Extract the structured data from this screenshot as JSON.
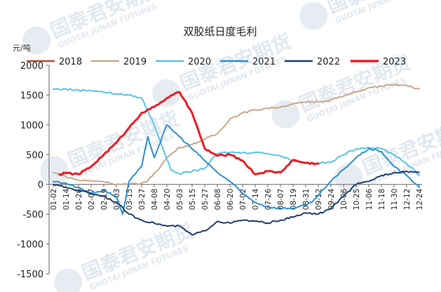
{
  "chart_data": {
    "type": "line",
    "title": "双胶纸日度毛利",
    "unit_label": "元/吨",
    "ylim": [
      -1500,
      2000
    ],
    "yticks": [
      2000,
      1500,
      1000,
      500,
      0,
      -500,
      -1000,
      -1500
    ],
    "xticks": [
      "01-02",
      "01-14",
      "01-26",
      "02-07",
      "02-19",
      "03-03",
      "03-15",
      "03-27",
      "04-08",
      "04-20",
      "05-03",
      "05-15",
      "05-27",
      "06-08",
      "06-20",
      "07-02",
      "07-14",
      "07-26",
      "08-07",
      "08-19",
      "08-31",
      "09-12",
      "09-24",
      "10-06",
      "10-25",
      "11-06",
      "11-18",
      "11-30",
      "12-12",
      "12-24"
    ],
    "legend_position": "top",
    "grid": false,
    "series": [
      {
        "name": "2018",
        "color": "#b8463a",
        "width": 2,
        "x": [],
        "values": []
      },
      {
        "name": "2019",
        "color": "#c8a98b",
        "width": 2,
        "x": [
          0,
          1,
          2,
          3,
          4,
          5,
          6,
          7,
          7.5,
          8,
          8.5,
          9,
          10,
          11,
          12,
          13,
          14,
          15,
          16,
          17,
          18,
          19,
          20,
          21,
          22,
          23,
          24,
          25,
          26,
          27,
          28,
          29
        ],
        "values": [
          200,
          130,
          70,
          60,
          50,
          0,
          0,
          20,
          60,
          190,
          300,
          450,
          620,
          670,
          760,
          850,
          1100,
          1200,
          1250,
          1280,
          1300,
          1350,
          1380,
          1390,
          1420,
          1480,
          1550,
          1620,
          1650,
          1670,
          1660,
          1600
        ]
      },
      {
        "name": "2020",
        "color": "#5bc3ea",
        "width": 2,
        "x": [
          0,
          1,
          2,
          3,
          4,
          5,
          6,
          7,
          8,
          8.7,
          9.3,
          10,
          11,
          12,
          13,
          14,
          15,
          16,
          17,
          18,
          19,
          20,
          21,
          22,
          23,
          24,
          25,
          26,
          27,
          28,
          29
        ],
        "values": [
          1600,
          1600,
          1580,
          1580,
          1550,
          1520,
          1500,
          1450,
          1000,
          600,
          250,
          180,
          220,
          270,
          520,
          540,
          530,
          540,
          520,
          480,
          400,
          360,
          360,
          370,
          500,
          600,
          620,
          600,
          500,
          350,
          150
        ]
      },
      {
        "name": "2021",
        "color": "#2e8fd0",
        "width": 2,
        "x": [
          0,
          1,
          2,
          3,
          4,
          5,
          5.5,
          6,
          7,
          7.5,
          8,
          9,
          10,
          11,
          12,
          13,
          14,
          15,
          16,
          17,
          18,
          19,
          20,
          20.5,
          21,
          22,
          23,
          24,
          25,
          26,
          27,
          28,
          29
        ],
        "values": [
          50,
          20,
          -50,
          -150,
          -100,
          -200,
          -500,
          50,
          300,
          800,
          450,
          1000,
          800,
          600,
          400,
          200,
          50,
          -150,
          -300,
          -380,
          -400,
          -400,
          -350,
          -300,
          -180,
          50,
          250,
          450,
          600,
          550,
          300,
          150,
          -50
        ]
      },
      {
        "name": "2022",
        "color": "#1f3f6e",
        "width": 2,
        "x": [
          0,
          1,
          2,
          3,
          4,
          5,
          6,
          7,
          8,
          9,
          10,
          11,
          12,
          13,
          14,
          15,
          16,
          17,
          18,
          19,
          20,
          21,
          22,
          23,
          24,
          25,
          26,
          27,
          28,
          29
        ],
        "values": [
          0,
          -50,
          -100,
          -150,
          -200,
          -300,
          -500,
          -600,
          -650,
          -700,
          -700,
          -850,
          -780,
          -620,
          -650,
          -600,
          -620,
          -650,
          -600,
          -550,
          -480,
          -500,
          -400,
          -200,
          0,
          50,
          150,
          200,
          220,
          200
        ]
      },
      {
        "name": "2023",
        "color": "#ed1c24",
        "width": 3,
        "x": [
          0.5,
          1,
          2,
          3,
          4,
          5,
          6,
          7,
          8,
          9,
          10,
          11,
          12,
          13,
          14,
          15,
          16,
          17,
          18,
          19,
          20,
          21
        ],
        "values": [
          170,
          190,
          170,
          300,
          500,
          700,
          950,
          1200,
          1300,
          1450,
          1550,
          1200,
          600,
          480,
          500,
          400,
          170,
          220,
          200,
          410,
          360,
          350
        ]
      }
    ]
  },
  "watermark": {
    "brand_cn": "国泰君安期货",
    "brand_en": "GUOTAI JUNAN FUTURES"
  }
}
